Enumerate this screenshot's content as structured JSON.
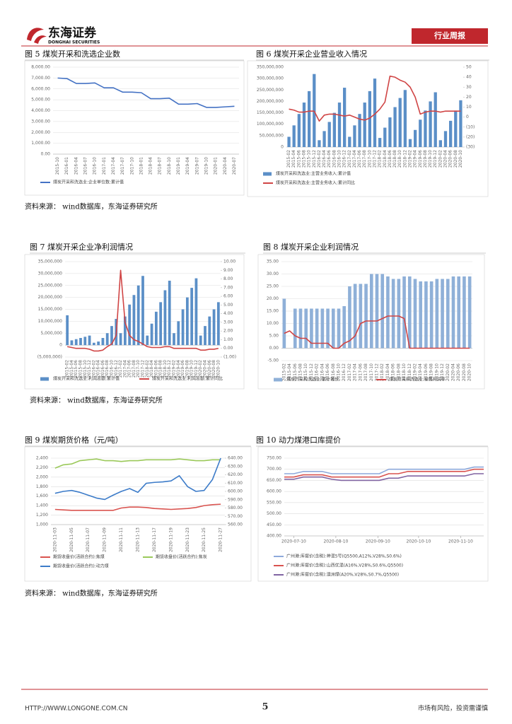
{
  "header": {
    "company": "东海证券",
    "company_en": "DONGHAI SECURITIES",
    "report_type": "行业周报"
  },
  "footer": {
    "url": "HTTP://WWW.LONGONE.COM.CN",
    "page": "5",
    "disclaimer": "市场有风险，投资需谨慎"
  },
  "sources": [
    "资料来源：  wind数据库，东海证券研究所",
    "资料来源：  wind数据库，东海证券研究所",
    "资料来源：  wind数据库，东海证券研究所"
  ],
  "chart_data": [
    {
      "type": "line",
      "title": "图 5   煤炭开采和洗选企业数",
      "grid": true,
      "legend": "bottom",
      "categories": [
        "2015-10",
        "2016-01",
        "2016-04",
        "2016-07",
        "2016-10",
        "2017-01",
        "2017-04",
        "2017-07",
        "2017-10",
        "2018-01",
        "2018-04",
        "2018-07",
        "2018-10",
        "2019-01",
        "2019-04",
        "2019-07",
        "2019-10",
        "2020-01",
        "2020-04",
        "2020-07"
      ],
      "series": [
        {
          "name": "煤炭开采和洗选业:企业单位数:累计值",
          "color": "#4472c4",
          "values": [
            7000,
            6950,
            6500,
            6500,
            6550,
            6100,
            6100,
            5700,
            5700,
            5650,
            5100,
            5100,
            5150,
            4600,
            4600,
            4650,
            4300,
            4300,
            4350,
            4400
          ]
        }
      ],
      "ylim": [
        0,
        8000
      ],
      "yticks": [
        {
          "value": 0,
          "label": "0.00"
        },
        {
          "value": 1000,
          "label": "1,000.00"
        },
        {
          "value": 2000,
          "label": "2,000.00"
        },
        {
          "value": 3000,
          "label": "3,000.00"
        },
        {
          "value": 4000,
          "label": "4,000.00"
        },
        {
          "value": 5000,
          "label": "5,000.00"
        },
        {
          "value": 6000,
          "label": "6,000.00"
        },
        {
          "value": 7000,
          "label": "7,000.00"
        },
        {
          "value": 8000,
          "label": "8,000.00"
        }
      ]
    },
    {
      "type": "combo",
      "title": "图 6   煤炭开采企业营业收入情况",
      "grid": false,
      "legend": "bottom",
      "categories": [
        "2015-02",
        "2015-04",
        "2015-06",
        "2015-08",
        "2015-10",
        "2015-12",
        "2016-02",
        "2016-04",
        "2016-06",
        "2016-08",
        "2016-10",
        "2016-12",
        "2017-02",
        "2017-04",
        "2017-06",
        "2017-08",
        "2017-10",
        "2017-12",
        "2018-02",
        "2018-04",
        "2018-06",
        "2018-08",
        "2018-10",
        "2018-12",
        "2019-02",
        "2019-04",
        "2019-06",
        "2019-08",
        "2019-10",
        "2019-12",
        "2020-02",
        "2020-04",
        "2020-06",
        "2020-08",
        "2020-10"
      ],
      "series": [
        {
          "name": "煤炭开采和洗选业:主营业务收入:累计值",
          "type": "bar",
          "color": "#5b8fc7",
          "values": [
            45000000,
            95000000,
            145000000,
            195000000,
            245000000,
            320000000,
            30000000,
            70000000,
            110000000,
            150000000,
            195000000,
            260000000,
            45000000,
            95000000,
            145000000,
            195000000,
            245000000,
            300000000,
            40000000,
            85000000,
            130000000,
            175000000,
            215000000,
            250000000,
            35000000,
            75000000,
            120000000,
            160000000,
            200000000,
            240000000,
            30000000,
            70000000,
            115000000,
            160000000,
            205000000
          ]
        },
        {
          "name": "煤炭开采和洗选业:主营业务收入:累计同比",
          "type": "line",
          "axis": "y2",
          "color": "#d04545",
          "values": [
            8,
            7,
            5,
            5,
            6,
            6,
            -4,
            2,
            3,
            3,
            2,
            1,
            2,
            0,
            -2,
            -3,
            -1,
            3,
            8,
            15,
            41,
            40,
            37,
            35,
            30,
            20,
            3,
            5,
            6,
            6,
            5,
            6,
            6,
            6,
            6
          ]
        }
      ],
      "ylim": [
        0,
        350000000
      ],
      "yticks": [
        0,
        {
          "value": 50000000,
          "label": "50,000,000"
        },
        {
          "value": 100000000,
          "label": "100,000,000"
        },
        {
          "value": 150000000,
          "label": "150,000,000"
        },
        {
          "value": 200000000,
          "label": "200,000,000"
        },
        {
          "value": 250000000,
          "label": "250,000,000"
        },
        {
          "value": 300000000,
          "label": "300,000,000"
        },
        {
          "value": 350000000,
          "label": "350,000,000"
        }
      ],
      "y2lim": [
        -30,
        50
      ],
      "y2ticks": [
        {
          "value": -30,
          "label": "(30)"
        },
        {
          "value": -20,
          "label": "(20)"
        },
        {
          "value": -10,
          "label": "(10)"
        },
        0,
        10,
        20,
        30,
        40,
        50
      ]
    },
    {
      "type": "combo",
      "title": "图 7   煤炭开采企业净利润情况",
      "grid": true,
      "legend": "bottom",
      "categories": [
        "2015-02",
        "2015-04",
        "2015-06",
        "2015-08",
        "2015-10",
        "2015-12",
        "2016-02",
        "2016-04",
        "2016-06",
        "2016-08",
        "2016-10",
        "2016-12",
        "2017-02",
        "2017-04",
        "2017-06",
        "2017-08",
        "2017-10",
        "2017-12",
        "2018-02",
        "2018-04",
        "2018-06",
        "2018-08",
        "2018-10",
        "2018-12",
        "2019-02",
        "2019-04",
        "2019-06",
        "2019-08",
        "2019-10",
        "2019-12",
        "2020-02",
        "2020-04",
        "2020-06",
        "2020-08",
        "2020-10"
      ],
      "series": [
        {
          "name": "煤炭开采和洗选业:利润总额:累计值",
          "type": "bar",
          "color": "#5b8fc7",
          "values": [
            12500000,
            2000000,
            2500000,
            3000000,
            3500000,
            4000000,
            1000000,
            1500000,
            3000000,
            5000000,
            8000000,
            11000000,
            5000000,
            12000000,
            17000000,
            21000000,
            25000000,
            29000000,
            4000000,
            9000000,
            14000000,
            18000000,
            23000000,
            27000000,
            5000000,
            10000000,
            15000000,
            20000000,
            24000000,
            28000000,
            4000000,
            8000000,
            12000000,
            15000000,
            18000000
          ]
        },
        {
          "name": "煤炭开采和洗选业:利润总额:累计同比",
          "type": "line",
          "axis": "y2",
          "color": "#d04545",
          "values": [
            0.2,
            0.1,
            0,
            0,
            0,
            -0.1,
            -0.3,
            -0.3,
            -0.2,
            0.2,
            0.5,
            1.5,
            9,
            3,
            1.5,
            1,
            0.8,
            0.5,
            0.2,
            0.1,
            0.1,
            0.1,
            0.2,
            0.2,
            0,
            0,
            0,
            0,
            0,
            0,
            -0.2,
            -0.2,
            -0.1,
            -0.1,
            0
          ]
        }
      ],
      "ylim": [
        -5000000,
        35000000
      ],
      "yticks": [
        {
          "value": -5000000,
          "label": "(5,000,000)"
        },
        0,
        {
          "value": 5000000,
          "label": "5,000,000"
        },
        {
          "value": 10000000,
          "label": "10,000,000"
        },
        {
          "value": 15000000,
          "label": "15,000,000"
        },
        {
          "value": 20000000,
          "label": "20,000,000"
        },
        {
          "value": 25000000,
          "label": "25,000,000"
        },
        {
          "value": 30000000,
          "label": "30,000,000"
        },
        {
          "value": 35000000,
          "label": "35,000,000"
        }
      ],
      "y2lim": [
        -1,
        10
      ],
      "y2ticks": [
        {
          "value": -1,
          "label": "(1.00)"
        },
        {
          "value": 0,
          "label": "0.00"
        },
        {
          "value": 1,
          "label": "1.00"
        },
        {
          "value": 2,
          "label": "2.00"
        },
        {
          "value": 3,
          "label": "3.00"
        },
        {
          "value": 4,
          "label": "4.00"
        },
        {
          "value": 5,
          "label": "5.00"
        },
        {
          "value": 6,
          "label": "6.00"
        },
        {
          "value": 7,
          "label": "7.00"
        },
        {
          "value": 8,
          "label": "8.00"
        },
        {
          "value": 9,
          "label": "9.00"
        },
        {
          "value": 10,
          "label": "10.00"
        }
      ]
    },
    {
      "type": "combo",
      "title": "图 8   煤炭开采企业利润情况",
      "grid": true,
      "legend": "bottom",
      "categories": [
        "2015-02",
        "2015-04",
        "2015-06",
        "2015-08",
        "2015-10",
        "2015-12",
        "2016-02",
        "2016-04",
        "2016-06",
        "2016-08",
        "2016-10",
        "2016-12",
        "2017-02",
        "2017-04",
        "2017-06",
        "2017-08",
        "2017-10",
        "2017-12",
        "2018-02",
        "2018-04",
        "2018-06",
        "2018-08",
        "2018-10",
        "2018-12",
        "2019-02",
        "2019-04",
        "2019-06",
        "2019-08",
        "2019-10",
        "2019-12",
        "2020-02",
        "2020-04",
        "2020-06",
        "2020-08",
        "2020-10"
      ],
      "series": [
        {
          "name": "煤炭开采和洗选业:累计增长",
          "type": "bar",
          "color": "#8fb0d8",
          "values": [
            20,
            0,
            16,
            16,
            16,
            16,
            16,
            16,
            16,
            16,
            16,
            17,
            25,
            26,
            26,
            26,
            30,
            30,
            30,
            29,
            28,
            28,
            29,
            29,
            28,
            27,
            27,
            27,
            28,
            28,
            28,
            29,
            29,
            29,
            29
          ]
        },
        {
          "name": "煤炭开采和洗选业:销售利润率",
          "type": "line",
          "color": "#d04545",
          "values": [
            6,
            7,
            5,
            4,
            4,
            2,
            2,
            2,
            2,
            0,
            0,
            2,
            3,
            5,
            10,
            11,
            11,
            11,
            12,
            13,
            13,
            13,
            12,
            0,
            0,
            0,
            0,
            0,
            0,
            0,
            0,
            0,
            0,
            0,
            0
          ]
        }
      ],
      "ylim": [
        -5,
        35
      ],
      "yticks": [
        {
          "value": -5,
          "label": "-5.00"
        },
        {
          "value": 0,
          "label": "0.00"
        },
        {
          "value": 5,
          "label": "5.00"
        },
        {
          "value": 10,
          "label": "10.00"
        },
        {
          "value": 15,
          "label": "15.00"
        },
        {
          "value": 20,
          "label": "20.00"
        },
        {
          "value": 25,
          "label": "25.00"
        },
        {
          "value": 30,
          "label": "30.00"
        },
        {
          "value": 35,
          "label": "35.00"
        }
      ]
    },
    {
      "type": "line",
      "title": "图 9   煤炭期货价格（元/吨）",
      "grid": true,
      "legend": "bottom",
      "categories": [
        "2020-11-03",
        null,
        "2020-11-05",
        null,
        "2020-11-07",
        null,
        "2020-11-09",
        null,
        "2020-11-11",
        null,
        "2020-11-13",
        null,
        "2020-11-17",
        null,
        "2020-11-19",
        null,
        "2020-11-23",
        null,
        "2020-11-25",
        null,
        "2020-11-27"
      ],
      "series": [
        {
          "name": "期货收盘价(活跃合约):焦煤",
          "color": "#d9534f",
          "values": [
            1320,
            1310,
            1300,
            1300,
            1300,
            1300,
            1300,
            1300,
            1350,
            1370,
            1370,
            1360,
            1340,
            1330,
            1320,
            1330,
            1340,
            1360,
            1400,
            1420,
            1430
          ]
        },
        {
          "name": "期货收盘价(活跃合约):焦炭",
          "axis": "y2",
          "color": "#9bc95a",
          "values": [
            628,
            632,
            633,
            637,
            638,
            639,
            637,
            637,
            636,
            637,
            637,
            638,
            638,
            638,
            638,
            639,
            638,
            637,
            637,
            638,
            638
          ]
        },
        {
          "name": "期货收盘价(活跃合约):动力煤",
          "color": "#3d7cc9",
          "values": [
            1660,
            1700,
            1720,
            1680,
            1620,
            1560,
            1530,
            1620,
            1700,
            1760,
            1680,
            1870,
            1890,
            1900,
            1920,
            2030,
            1800,
            1700,
            1720,
            1950,
            2400
          ]
        }
      ],
      "ylim": [
        1000,
        2400
      ],
      "yticks": [
        {
          "value": 1000,
          "label": "1,000"
        },
        {
          "value": 1200,
          "label": "1,200"
        },
        {
          "value": 1400,
          "label": "1,400"
        },
        {
          "value": 1600,
          "label": "1,600"
        },
        {
          "value": 1800,
          "label": "1,800"
        },
        {
          "value": 2000,
          "label": "2,000"
        },
        {
          "value": 2200,
          "label": "2,200"
        },
        {
          "value": 2400,
          "label": "2,400"
        }
      ],
      "y2lim": [
        560,
        640
      ],
      "y2ticks": [
        {
          "value": 560,
          "label": "560.00"
        },
        {
          "value": 570,
          "label": "570.00"
        },
        {
          "value": 580,
          "label": "580.00"
        },
        {
          "value": 590,
          "label": "590.00"
        },
        {
          "value": 600,
          "label": "600.00"
        },
        {
          "value": 610,
          "label": "610.00"
        },
        {
          "value": 620,
          "label": "620.00"
        },
        {
          "value": 630,
          "label": "630.00"
        },
        {
          "value": 640,
          "label": "640.00"
        }
      ]
    },
    {
      "type": "line",
      "title": "图 10   动力煤港口库提价",
      "grid": true,
      "legend": "bottom",
      "x": [
        "2020-07-03",
        "2020-07-10",
        "2020-07-17",
        "2020-07-24",
        "2020-07-31",
        "2020-08-07",
        "2020-08-14",
        "2020-08-21",
        "2020-08-28",
        "2020-09-04",
        "2020-09-11",
        "2020-09-18",
        "2020-09-25",
        "2020-10-02",
        "2020-10-09",
        "2020-10-16",
        "2020-10-23",
        "2020-10-30",
        "2020-11-06",
        "2020-11-13",
        "2020-11-20",
        "2020-11-27"
      ],
      "xlim": [
        "2020-07-03",
        "2020-11-27"
      ],
      "xticks": [
        "2020-07-10",
        "2020-08-10",
        "2020-09-10",
        "2020-10-10",
        "2020-11-10"
      ],
      "series": [
        {
          "name": "广州港:库提价(含税):神混5号(Q5500,A12%,V28%,S0.6%)",
          "color": "#8ea9db",
          "values": [
            680,
            680,
            690,
            690,
            690,
            680,
            680,
            680,
            680,
            680,
            680,
            700,
            700,
            700,
            700,
            700,
            700,
            700,
            700,
            700,
            710,
            710
          ]
        },
        {
          "name": "广州港:库提价(含税):山西优混(A16%,V28%,S0.6%,Q5500)",
          "color": "#d9534f",
          "values": [
            665,
            665,
            675,
            675,
            675,
            665,
            665,
            665,
            665,
            665,
            665,
            680,
            680,
            690,
            690,
            690,
            690,
            690,
            690,
            690,
            700,
            700
          ]
        },
        {
          "name": "广州港:库提价(含税):澳洲煤(A20%,V28%,S0.7%,Q5500)",
          "color": "#8064a2",
          "values": [
            655,
            655,
            665,
            665,
            665,
            655,
            650,
            650,
            650,
            650,
            650,
            660,
            660,
            670,
            670,
            670,
            670,
            670,
            670,
            670,
            680,
            680
          ]
        }
      ],
      "ylim": [
        400,
        750
      ],
      "yticks": [
        {
          "value": 400,
          "label": "400.00"
        },
        {
          "value": 450,
          "label": "450.00"
        },
        {
          "value": 500,
          "label": "500.00"
        },
        {
          "value": 550,
          "label": "550.00"
        },
        {
          "value": 600,
          "label": "600.00"
        },
        {
          "value": 650,
          "label": "650.00"
        },
        {
          "value": 700,
          "label": "700.00"
        },
        {
          "value": 750,
          "label": "750.00"
        }
      ]
    }
  ]
}
